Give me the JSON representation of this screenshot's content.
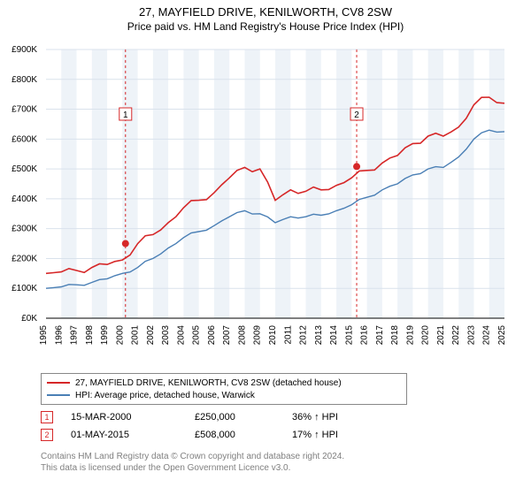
{
  "title": {
    "main": "27, MAYFIELD DRIVE, KENILWORTH, CV8 2SW",
    "sub": "Price paid vs. HM Land Registry's House Price Index (HPI)"
  },
  "chart": {
    "type": "line",
    "background": "#ffffff",
    "grid_color": "#d9e2ec",
    "grid_band_color": "#eef3f8",
    "axis_color": "#000000",
    "x_years": [
      1995,
      1996,
      1997,
      1998,
      1999,
      2000,
      2001,
      2002,
      2003,
      2004,
      2005,
      2006,
      2007,
      2008,
      2009,
      2010,
      2011,
      2012,
      2013,
      2014,
      2015,
      2016,
      2017,
      2018,
      2019,
      2020,
      2021,
      2022,
      2023,
      2024,
      2025
    ],
    "y_ticks": [
      0,
      100,
      200,
      300,
      400,
      500,
      600,
      700,
      800,
      900
    ],
    "y_label_prefix": "£",
    "y_label_suffix": "K",
    "ylim": [
      0,
      900
    ],
    "xlim": [
      1995,
      2025
    ],
    "series": [
      {
        "name": "price_paid",
        "label": "27, MAYFIELD DRIVE, KENILWORTH, CV8 2SW (detached house)",
        "color": "#d62728",
        "width": 1.6,
        "values": [
          150,
          155,
          160,
          170,
          180,
          195,
          250,
          280,
          320,
          370,
          395,
          420,
          470,
          505,
          500,
          395,
          430,
          425,
          430,
          445,
          470,
          495,
          520,
          545,
          585,
          610,
          610,
          640,
          715,
          740,
          720
        ]
      },
      {
        "name": "hpi",
        "label": "HPI: Average price, detached house, Warwick",
        "color": "#4a7fb5",
        "width": 1.4,
        "values": [
          100,
          105,
          112,
          120,
          132,
          150,
          170,
          200,
          235,
          270,
          290,
          310,
          340,
          360,
          350,
          320,
          340,
          340,
          345,
          360,
          380,
          405,
          430,
          450,
          480,
          500,
          505,
          540,
          600,
          630,
          625
        ]
      }
    ],
    "markers": [
      {
        "id": "1",
        "color": "#d62728",
        "year": 2000.2,
        "value": 250,
        "label_y": 80
      },
      {
        "id": "2",
        "color": "#d62728",
        "year": 2015.33,
        "value": 508,
        "label_y": 80
      }
    ]
  },
  "legend": {
    "rows": [
      {
        "color": "#d62728",
        "label": "27, MAYFIELD DRIVE, KENILWORTH, CV8 2SW (detached house)"
      },
      {
        "color": "#4a7fb5",
        "label": "HPI: Average price, detached house, Warwick"
      }
    ]
  },
  "transactions": [
    {
      "id": "1",
      "color": "#d62728",
      "date": "15-MAR-2000",
      "price": "£250,000",
      "pct": "36% ↑ HPI"
    },
    {
      "id": "2",
      "color": "#d62728",
      "date": "01-MAY-2015",
      "price": "£508,000",
      "pct": "17% ↑ HPI"
    }
  ],
  "footer": {
    "line1": "Contains HM Land Registry data © Crown copyright and database right 2024.",
    "line2": "This data is licensed under the Open Government Licence v3.0."
  }
}
